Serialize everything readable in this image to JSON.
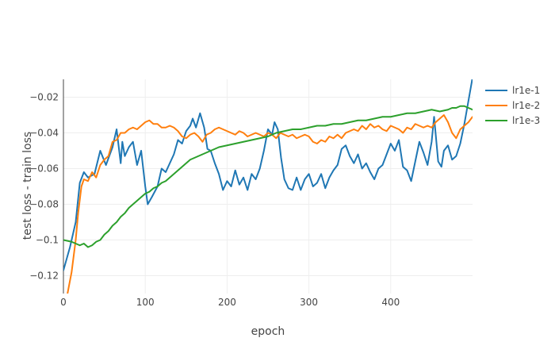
{
  "chart_data": {
    "type": "line",
    "title": "",
    "xlabel": "epoch",
    "ylabel": "test loss - train loss",
    "xlim": [
      0,
      500
    ],
    "ylim": [
      -0.13,
      -0.01
    ],
    "xticks": [
      0,
      100,
      200,
      300,
      400
    ],
    "xtick_labels": [
      "0",
      "100",
      "200",
      "300",
      "400"
    ],
    "yticks": [
      -0.12,
      -0.1,
      -0.08,
      -0.06,
      -0.04,
      -0.02
    ],
    "ytick_labels": [
      "−0.12",
      "−0.1",
      "−0.08",
      "−0.06",
      "−0.04",
      "−0.02"
    ],
    "grid": true,
    "legend_position": "top-right",
    "series": [
      {
        "name": "lr1e-1",
        "color": "#1f77b4",
        "x": [
          0,
          8,
          15,
          20,
          25,
          30,
          38,
          45,
          52,
          60,
          65,
          70,
          72,
          75,
          80,
          85,
          90,
          95,
          100,
          103,
          108,
          115,
          120,
          125,
          130,
          135,
          140,
          145,
          150,
          155,
          158,
          162,
          167,
          172,
          176,
          180,
          185,
          190,
          195,
          200,
          205,
          210,
          215,
          220,
          225,
          230,
          235,
          240,
          245,
          250,
          255,
          258,
          262,
          266,
          270,
          275,
          280,
          285,
          290,
          295,
          300,
          305,
          310,
          315,
          320,
          325,
          330,
          335,
          340,
          345,
          350,
          355,
          360,
          365,
          370,
          375,
          380,
          385,
          390,
          395,
          400,
          405,
          410,
          415,
          420,
          425,
          430,
          435,
          440,
          445,
          450,
          453,
          458,
          462,
          465,
          470,
          475,
          480,
          485,
          490,
          495,
          500
        ],
        "y": [
          -0.117,
          -0.104,
          -0.09,
          -0.068,
          -0.062,
          -0.065,
          -0.063,
          -0.05,
          -0.058,
          -0.048,
          -0.038,
          -0.057,
          -0.045,
          -0.053,
          -0.048,
          -0.045,
          -0.058,
          -0.05,
          -0.07,
          -0.08,
          -0.076,
          -0.07,
          -0.06,
          -0.062,
          -0.057,
          -0.052,
          -0.044,
          -0.046,
          -0.039,
          -0.036,
          -0.032,
          -0.037,
          -0.029,
          -0.037,
          -0.049,
          -0.05,
          -0.057,
          -0.063,
          -0.072,
          -0.067,
          -0.07,
          -0.061,
          -0.069,
          -0.065,
          -0.072,
          -0.063,
          -0.066,
          -0.06,
          -0.05,
          -0.038,
          -0.041,
          -0.034,
          -0.038,
          -0.054,
          -0.066,
          -0.071,
          -0.072,
          -0.065,
          -0.072,
          -0.066,
          -0.063,
          -0.07,
          -0.068,
          -0.063,
          -0.071,
          -0.065,
          -0.061,
          -0.058,
          -0.049,
          -0.047,
          -0.053,
          -0.057,
          -0.052,
          -0.06,
          -0.057,
          -0.062,
          -0.066,
          -0.06,
          -0.058,
          -0.052,
          -0.046,
          -0.05,
          -0.044,
          -0.059,
          -0.061,
          -0.067,
          -0.056,
          -0.045,
          -0.051,
          -0.058,
          -0.045,
          -0.031,
          -0.056,
          -0.059,
          -0.05,
          -0.047,
          -0.055,
          -0.053,
          -0.046,
          -0.035,
          -0.022,
          -0.009
        ]
      },
      {
        "name": "lr1e-2",
        "color": "#ff7f0e",
        "x": [
          0,
          5,
          10,
          15,
          18,
          22,
          25,
          30,
          35,
          40,
          45,
          50,
          55,
          60,
          65,
          70,
          75,
          80,
          85,
          90,
          95,
          100,
          105,
          110,
          115,
          120,
          125,
          130,
          135,
          140,
          145,
          150,
          155,
          160,
          165,
          170,
          175,
          180,
          185,
          190,
          195,
          200,
          205,
          210,
          215,
          220,
          225,
          230,
          235,
          240,
          245,
          250,
          255,
          260,
          265,
          270,
          275,
          280,
          285,
          290,
          295,
          300,
          305,
          310,
          315,
          320,
          325,
          330,
          335,
          340,
          345,
          350,
          355,
          360,
          365,
          370,
          375,
          380,
          385,
          390,
          395,
          400,
          405,
          410,
          415,
          420,
          425,
          430,
          435,
          440,
          445,
          450,
          455,
          460,
          465,
          470,
          475,
          480,
          485,
          490,
          495,
          500
        ],
        "y": [
          -0.14,
          -0.13,
          -0.118,
          -0.1,
          -0.085,
          -0.07,
          -0.066,
          -0.067,
          -0.062,
          -0.065,
          -0.058,
          -0.055,
          -0.053,
          -0.045,
          -0.044,
          -0.04,
          -0.04,
          -0.038,
          -0.037,
          -0.038,
          -0.036,
          -0.034,
          -0.033,
          -0.035,
          -0.035,
          -0.037,
          -0.037,
          -0.036,
          -0.037,
          -0.039,
          -0.042,
          -0.043,
          -0.041,
          -0.04,
          -0.042,
          -0.045,
          -0.041,
          -0.04,
          -0.038,
          -0.037,
          -0.038,
          -0.039,
          -0.04,
          -0.041,
          -0.039,
          -0.04,
          -0.042,
          -0.041,
          -0.04,
          -0.041,
          -0.042,
          -0.04,
          -0.041,
          -0.043,
          -0.04,
          -0.041,
          -0.042,
          -0.041,
          -0.043,
          -0.042,
          -0.041,
          -0.042,
          -0.045,
          -0.046,
          -0.044,
          -0.045,
          -0.042,
          -0.043,
          -0.041,
          -0.043,
          -0.04,
          -0.039,
          -0.038,
          -0.039,
          -0.036,
          -0.038,
          -0.035,
          -0.037,
          -0.036,
          -0.038,
          -0.039,
          -0.036,
          -0.037,
          -0.038,
          -0.04,
          -0.037,
          -0.038,
          -0.035,
          -0.036,
          -0.037,
          -0.036,
          -0.037,
          -0.034,
          -0.032,
          -0.03,
          -0.034,
          -0.04,
          -0.043,
          -0.038,
          -0.036,
          -0.034,
          -0.031
        ]
      },
      {
        "name": "lr1e-3",
        "color": "#2ca02c",
        "x": [
          0,
          10,
          20,
          25,
          30,
          35,
          40,
          45,
          50,
          55,
          60,
          65,
          70,
          75,
          80,
          85,
          90,
          95,
          100,
          105,
          110,
          115,
          120,
          125,
          130,
          135,
          140,
          145,
          150,
          155,
          160,
          165,
          170,
          175,
          180,
          190,
          200,
          210,
          220,
          230,
          240,
          250,
          260,
          270,
          280,
          290,
          300,
          310,
          320,
          330,
          340,
          350,
          360,
          370,
          380,
          390,
          400,
          410,
          420,
          430,
          440,
          450,
          460,
          470,
          475,
          480,
          485,
          490,
          495,
          500
        ],
        "y": [
          -0.1,
          -0.101,
          -0.103,
          -0.102,
          -0.104,
          -0.103,
          -0.101,
          -0.1,
          -0.097,
          -0.095,
          -0.092,
          -0.09,
          -0.087,
          -0.085,
          -0.082,
          -0.08,
          -0.078,
          -0.076,
          -0.074,
          -0.073,
          -0.071,
          -0.07,
          -0.068,
          -0.067,
          -0.065,
          -0.063,
          -0.061,
          -0.059,
          -0.057,
          -0.055,
          -0.054,
          -0.053,
          -0.052,
          -0.051,
          -0.05,
          -0.048,
          -0.047,
          -0.046,
          -0.045,
          -0.044,
          -0.043,
          -0.042,
          -0.04,
          -0.039,
          -0.038,
          -0.038,
          -0.037,
          -0.036,
          -0.036,
          -0.035,
          -0.035,
          -0.034,
          -0.033,
          -0.033,
          -0.032,
          -0.031,
          -0.031,
          -0.03,
          -0.029,
          -0.029,
          -0.028,
          -0.027,
          -0.028,
          -0.027,
          -0.026,
          -0.026,
          -0.025,
          -0.025,
          -0.026,
          -0.027
        ]
      }
    ]
  }
}
